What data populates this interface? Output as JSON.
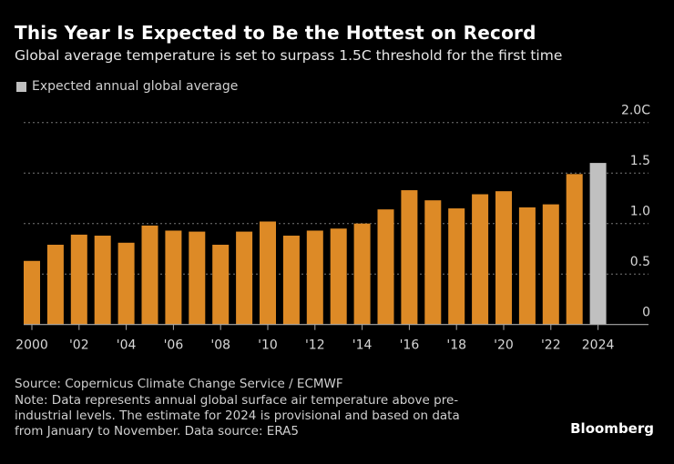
{
  "title": "This Year Is Expected to Be the Hottest on Record",
  "subtitle": "Global average temperature is set to surpass 1.5C threshold for the first time",
  "legend": {
    "label": "Expected annual global average",
    "color": "#c0c0c0"
  },
  "source": "Source: Copernicus Climate Change Service / ECMWF",
  "note_lines": [
    "Note: Data represents annual global surface air temperature above pre-",
    "industrial levels. The estimate for 2024 is provisional and based on data",
    "from January to November. Data source: ERA5"
  ],
  "logo": "Bloomberg",
  "chart_data": {
    "type": "bar",
    "title": "This Year Is Expected to Be the Hottest on Record",
    "ylim": [
      0,
      2.0
    ],
    "yticks": [
      0,
      0.5,
      1.0,
      1.5,
      2.0
    ],
    "ytick_labels": [
      "0",
      "0.5",
      "1.0",
      "1.5",
      "2.0C"
    ],
    "grid": true,
    "categories": [
      2000,
      2001,
      2002,
      2003,
      2004,
      2005,
      2006,
      2007,
      2008,
      2009,
      2010,
      2011,
      2012,
      2013,
      2014,
      2015,
      2016,
      2017,
      2018,
      2019,
      2020,
      2021,
      2022,
      2023,
      2024
    ],
    "xtick_labels": {
      "2000": "2000",
      "2002": "'02",
      "2004": "'04",
      "2006": "'06",
      "2008": "'08",
      "2010": "'10",
      "2012": "'12",
      "2014": "'14",
      "2016": "'16",
      "2018": "'18",
      "2020": "'20",
      "2022": "'22",
      "2024": "2024"
    },
    "values": [
      0.63,
      0.79,
      0.89,
      0.88,
      0.81,
      0.98,
      0.93,
      0.92,
      0.79,
      0.92,
      1.02,
      0.88,
      0.93,
      0.95,
      1.0,
      1.14,
      1.33,
      1.23,
      1.15,
      1.29,
      1.32,
      1.16,
      1.19,
      1.49,
      1.6
    ],
    "colors": {
      "actual": "#dd8a26",
      "expected": "#c0c0c0"
    },
    "expected_categories": [
      2024
    ]
  }
}
